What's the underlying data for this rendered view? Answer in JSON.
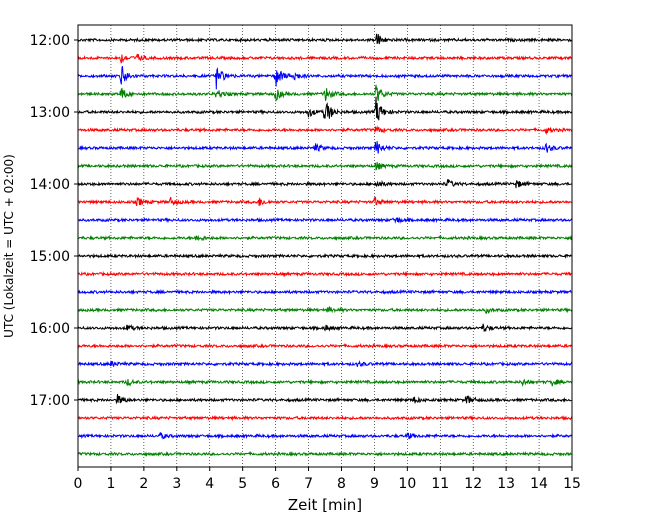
{
  "chart_data": {
    "type": "line",
    "title": "",
    "xlabel": "Zeit  [min]",
    "ylabel": "UTC (Lokalzeit = UTC + 02:00)",
    "xlim": [
      0,
      15
    ],
    "x_ticks": [
      "0",
      "1",
      "2",
      "3",
      "4",
      "5",
      "6",
      "7",
      "8",
      "9",
      "10",
      "11",
      "12",
      "13",
      "14",
      "15"
    ],
    "y_ticks": [
      {
        "trace": 0,
        "label": "12:00"
      },
      {
        "trace": 4,
        "label": "13:00"
      },
      {
        "trace": 8,
        "label": "14:00"
      },
      {
        "trace": 12,
        "label": "15:00"
      },
      {
        "trace": 16,
        "label": "16:00"
      },
      {
        "trace": 20,
        "label": "17:00"
      }
    ],
    "grid": {
      "x": true,
      "style": "dotted"
    },
    "trace_colors": [
      "#000000",
      "#ff0000",
      "#0000ff",
      "#008000"
    ],
    "traces": [
      {
        "start": "12:00",
        "color": "#000000",
        "events": [
          {
            "t": 9.05,
            "amp": 2.0
          }
        ]
      },
      {
        "start": "12:15",
        "color": "#ff0000",
        "events": [
          {
            "t": 1.3,
            "amp": 1.2
          },
          {
            "t": 1.8,
            "amp": 0.8
          }
        ]
      },
      {
        "start": "12:30",
        "color": "#0000ff",
        "events": [
          {
            "t": 1.3,
            "amp": 3.0
          },
          {
            "t": 4.2,
            "amp": 3.0
          },
          {
            "t": 6.0,
            "amp": 3.0
          },
          {
            "t": 6.5,
            "amp": 1.5
          }
        ]
      },
      {
        "start": "12:45",
        "color": "#008000",
        "events": [
          {
            "t": 1.3,
            "amp": 1.5
          },
          {
            "t": 4.2,
            "amp": 1.2
          },
          {
            "t": 6.0,
            "amp": 1.5
          },
          {
            "t": 7.5,
            "amp": 2.0
          },
          {
            "t": 9.05,
            "amp": 2.5
          }
        ]
      },
      {
        "start": "13:00",
        "color": "#000000",
        "events": [
          {
            "t": 7.0,
            "amp": 1.2
          },
          {
            "t": 7.5,
            "amp": 3.5
          },
          {
            "t": 9.05,
            "amp": 3.5
          }
        ]
      },
      {
        "start": "13:15",
        "color": "#ff0000",
        "events": [
          {
            "t": 9.05,
            "amp": 1.0
          },
          {
            "t": 14.2,
            "amp": 0.8
          }
        ]
      },
      {
        "start": "13:30",
        "color": "#0000ff",
        "events": [
          {
            "t": 7.2,
            "amp": 1.0
          },
          {
            "t": 9.05,
            "amp": 2.0
          },
          {
            "t": 14.2,
            "amp": 1.2
          }
        ]
      },
      {
        "start": "13:45",
        "color": "#008000",
        "events": [
          {
            "t": 9.05,
            "amp": 1.0
          }
        ]
      },
      {
        "start": "14:00",
        "color": "#000000",
        "events": [
          {
            "t": 9.05,
            "amp": 1.0
          },
          {
            "t": 11.2,
            "amp": 1.2
          },
          {
            "t": 13.3,
            "amp": 1.0
          }
        ]
      },
      {
        "start": "14:15",
        "color": "#ff0000",
        "events": [
          {
            "t": 1.8,
            "amp": 1.0
          },
          {
            "t": 2.8,
            "amp": 1.0
          },
          {
            "t": 5.5,
            "amp": 1.0
          },
          {
            "t": 9.0,
            "amp": 1.2
          }
        ]
      },
      {
        "start": "14:30",
        "color": "#0000ff",
        "events": [
          {
            "t": 9.6,
            "amp": 1.0
          }
        ]
      },
      {
        "start": "14:45",
        "color": "#008000",
        "events": [
          {
            "t": 3.6,
            "amp": 0.8
          }
        ]
      },
      {
        "start": "15:00",
        "color": "#000000",
        "events": []
      },
      {
        "start": "15:15",
        "color": "#ff0000",
        "events": []
      },
      {
        "start": "15:30",
        "color": "#0000ff",
        "events": []
      },
      {
        "start": "15:45",
        "color": "#008000",
        "events": [
          {
            "t": 7.6,
            "amp": 0.7
          },
          {
            "t": 12.4,
            "amp": 0.6
          }
        ]
      },
      {
        "start": "16:00",
        "color": "#000000",
        "events": [
          {
            "t": 1.5,
            "amp": 0.8
          },
          {
            "t": 7.5,
            "amp": 0.7
          },
          {
            "t": 12.3,
            "amp": 0.9
          }
        ]
      },
      {
        "start": "16:15",
        "color": "#ff0000",
        "events": []
      },
      {
        "start": "16:30",
        "color": "#0000ff",
        "events": [
          {
            "t": 1.0,
            "amp": 0.6
          },
          {
            "t": 8.5,
            "amp": 0.6
          }
        ]
      },
      {
        "start": "16:45",
        "color": "#008000",
        "events": [
          {
            "t": 1.5,
            "amp": 0.8
          },
          {
            "t": 13.5,
            "amp": 0.7
          },
          {
            "t": 14.4,
            "amp": 0.8
          }
        ]
      },
      {
        "start": "17:00",
        "color": "#000000",
        "events": [
          {
            "t": 1.2,
            "amp": 1.2
          },
          {
            "t": 10.2,
            "amp": 0.8
          },
          {
            "t": 11.8,
            "amp": 1.2
          }
        ]
      },
      {
        "start": "17:15",
        "color": "#ff0000",
        "events": []
      },
      {
        "start": "17:30",
        "color": "#0000ff",
        "events": [
          {
            "t": 2.5,
            "amp": 0.7
          },
          {
            "t": 10.0,
            "amp": 0.8
          }
        ]
      },
      {
        "start": "17:45",
        "color": "#008000",
        "events": []
      }
    ]
  }
}
